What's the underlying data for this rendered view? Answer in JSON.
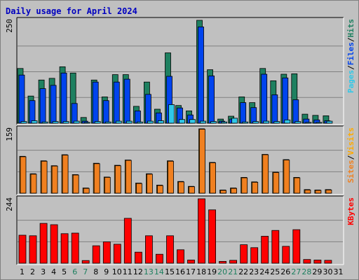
{
  "chart_data": {
    "type": "bar",
    "title": "Daily usage for April 2024",
    "colors": {
      "background": "#c0c0c0",
      "title": "#0000c0",
      "hits": "#1e8060",
      "files": "#0044ee",
      "pages": "#30c8e8",
      "visits": "#ffaa00",
      "sites": "#f08020",
      "kbytes": "#ff0000",
      "weekend_label": "#1e8060",
      "weekday_label": "#000000"
    },
    "categories": [
      "1",
      "2",
      "3",
      "4",
      "5",
      "6",
      "7",
      "8",
      "9",
      "10",
      "11",
      "12",
      "13",
      "14",
      "15",
      "16",
      "17",
      "18",
      "19",
      "20",
      "21",
      "22",
      "23",
      "24",
      "25",
      "26",
      "27",
      "28",
      "29",
      "30",
      "31"
    ],
    "weekend_days": [
      "6",
      "7",
      "13",
      "14",
      "20",
      "21",
      "27",
      "28"
    ],
    "panels": [
      {
        "id": "hits",
        "max_label": "250",
        "ymax": 250,
        "legend": [
          {
            "text": "Pages",
            "color": "#30c8e8"
          },
          {
            "text": "/",
            "color": "#000000"
          },
          {
            "text": "Files",
            "color": "#0044ee"
          },
          {
            "text": "/",
            "color": "#000000"
          },
          {
            "text": "Hits",
            "color": "#1e8060"
          }
        ],
        "series": [
          {
            "name": "Hits",
            "color": "#1e8060",
            "values": [
              133,
              66,
              105,
              109,
              137,
              122,
              14,
              105,
              64,
              118,
              118,
              41,
              100,
              34,
              171,
              43,
              30,
              250,
              130,
              10,
              17,
              64,
              50,
              133,
              103,
              119,
              120,
              22,
              19,
              18,
              null
            ]
          },
          {
            "name": "Files",
            "color": "#0044ee",
            "values": [
              117,
              55,
              84,
              92,
              122,
              48,
              5,
              100,
              55,
              100,
              107,
              30,
              70,
              25,
              114,
              37,
              20,
              234,
              115,
              5,
              10,
              50,
              38,
              119,
              69,
              110,
              57,
              10,
              8,
              6,
              null
            ]
          },
          {
            "name": "Pages",
            "color": "#30c8e8",
            "values": [
              4,
              6,
              3,
              4,
              4,
              5,
              2,
              4,
              3,
              5,
              5,
              3,
              5,
              6,
              45,
              9,
              9,
              5,
              4,
              3,
              12,
              3,
              4,
              5,
              4,
              8,
              4,
              2,
              2,
              5,
              null
            ]
          }
        ]
      },
      {
        "id": "visits",
        "max_label": "159",
        "ymax": 159,
        "legend": [
          {
            "text": "Sites",
            "color": "#f08020"
          },
          {
            "text": "/",
            "color": "#000000"
          },
          {
            "text": "Visits",
            "color": "#ffaa00"
          }
        ],
        "series": [
          {
            "name": "Visits",
            "color": "#ffaa00",
            "values": [
              91,
              48,
              80,
              68,
              95,
              46,
              13,
              74,
              40,
              69,
              82,
              25,
              48,
              20,
              80,
              29,
              17,
              159,
              76,
              8,
              13,
              39,
              28,
              96,
              52,
              83,
              39,
              9,
              8,
              9,
              null
            ]
          },
          {
            "name": "Sites",
            "color": "#f08020",
            "values": [
              90,
              47,
              79,
              67,
              94,
              45,
              12,
              73,
              39,
              68,
              81,
              24,
              47,
              19,
              79,
              28,
              16,
              158,
              75,
              7,
              12,
              38,
              27,
              95,
              51,
              82,
              38,
              8,
              7,
              8,
              null
            ]
          }
        ]
      },
      {
        "id": "kbytes",
        "max_label": "244",
        "ymax": 244,
        "legend": [
          {
            "text": "KBytes",
            "color": "#ff0000"
          }
        ],
        "series": [
          {
            "name": "KBytes",
            "color": "#ff0000",
            "values": [
              106,
              104,
              151,
              146,
              112,
              114,
              10,
              66,
              81,
              72,
              170,
              42,
              104,
              34,
              104,
              51,
              12,
              244,
              202,
              7,
              11,
              70,
              59,
              102,
              124,
              64,
              127,
              14,
              12,
              11,
              null
            ]
          }
        ]
      }
    ]
  }
}
